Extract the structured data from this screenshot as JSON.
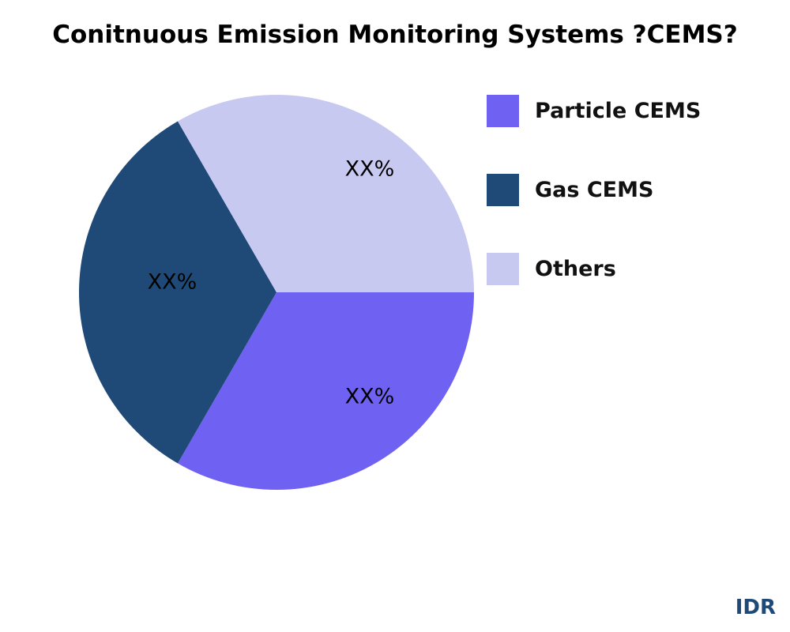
{
  "chart_data": {
    "type": "pie",
    "title": "Conitnuous Emission Monitoring Systems ?CEMS?",
    "slices": [
      {
        "name": "Particle CEMS",
        "value": 33.33,
        "label": "XX%",
        "color": "#6f61f2"
      },
      {
        "name": "Gas CEMS",
        "value": 33.33,
        "label": "XX%",
        "color": "#1f4a78"
      },
      {
        "name": "Others",
        "value": 33.33,
        "label": "XX%",
        "color": "#c8c9f0"
      }
    ],
    "legend_placement": "right"
  },
  "watermark": "IDR"
}
